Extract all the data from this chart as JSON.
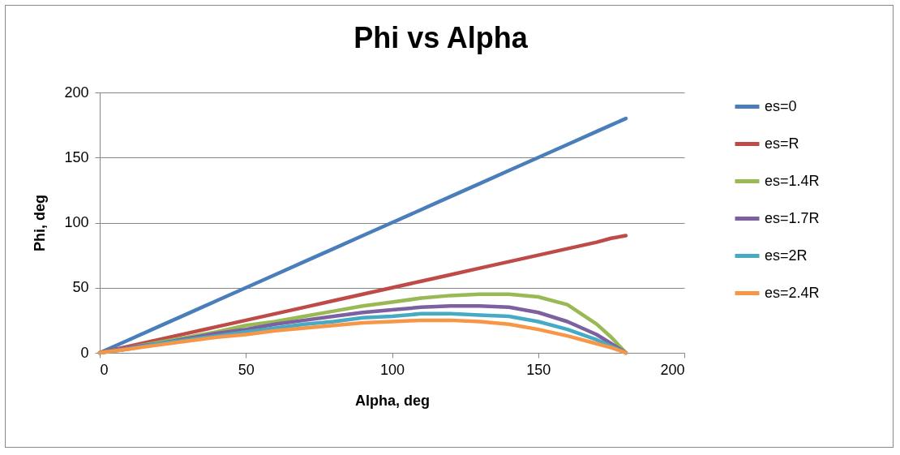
{
  "chart_data": {
    "type": "line",
    "title": "Phi vs Alpha",
    "xlabel": "Alpha, deg",
    "ylabel": "Phi, deg",
    "x": [
      0,
      10,
      20,
      30,
      40,
      50,
      60,
      70,
      80,
      90,
      100,
      110,
      120,
      130,
      140,
      150,
      160,
      170,
      175,
      180
    ],
    "series": [
      {
        "name": "es=0",
        "color": "#4a7ebb",
        "values": [
          0,
          10,
          20,
          30,
          40,
          50,
          60,
          70,
          80,
          90,
          100,
          110,
          120,
          130,
          140,
          150,
          160,
          170,
          175,
          180
        ]
      },
      {
        "name": "es=R",
        "color": "#be4b48",
        "values": [
          0,
          5,
          10,
          15,
          20,
          25,
          30,
          35,
          40,
          45,
          50,
          55,
          60,
          65,
          70,
          75,
          80,
          85,
          88,
          90
        ]
      },
      {
        "name": "es=1.4R",
        "color": "#98b954",
        "values": [
          0,
          4,
          8,
          12,
          16,
          21,
          24,
          28,
          32,
          36,
          39,
          42,
          44,
          45,
          45,
          43,
          37,
          22,
          12,
          0
        ]
      },
      {
        "name": "es=1.7R",
        "color": "#7d60a0",
        "values": [
          0,
          4,
          7,
          11,
          15,
          18,
          22,
          25,
          28,
          31,
          33,
          35,
          36,
          36,
          35,
          31,
          24,
          14,
          7,
          0
        ]
      },
      {
        "name": "es=2R",
        "color": "#46aac5",
        "values": [
          0,
          3,
          7,
          10,
          13,
          16,
          19,
          22,
          24,
          27,
          28,
          30,
          30,
          29,
          28,
          24,
          18,
          10,
          5,
          0
        ]
      },
      {
        "name": "es=2.4R",
        "color": "#f79646",
        "values": [
          0,
          3,
          6,
          9,
          12,
          14,
          17,
          19,
          21,
          23,
          24,
          25,
          25,
          24,
          22,
          18,
          13,
          7,
          4,
          0
        ]
      }
    ],
    "xlim": [
      0,
      200
    ],
    "xticks": [
      0,
      50,
      100,
      150,
      200
    ],
    "ylim": [
      0,
      200
    ],
    "yticks": [
      0,
      50,
      100,
      150,
      200
    ],
    "grid": "y",
    "legend": "right",
    "marker": "none",
    "line_style": "solid"
  }
}
